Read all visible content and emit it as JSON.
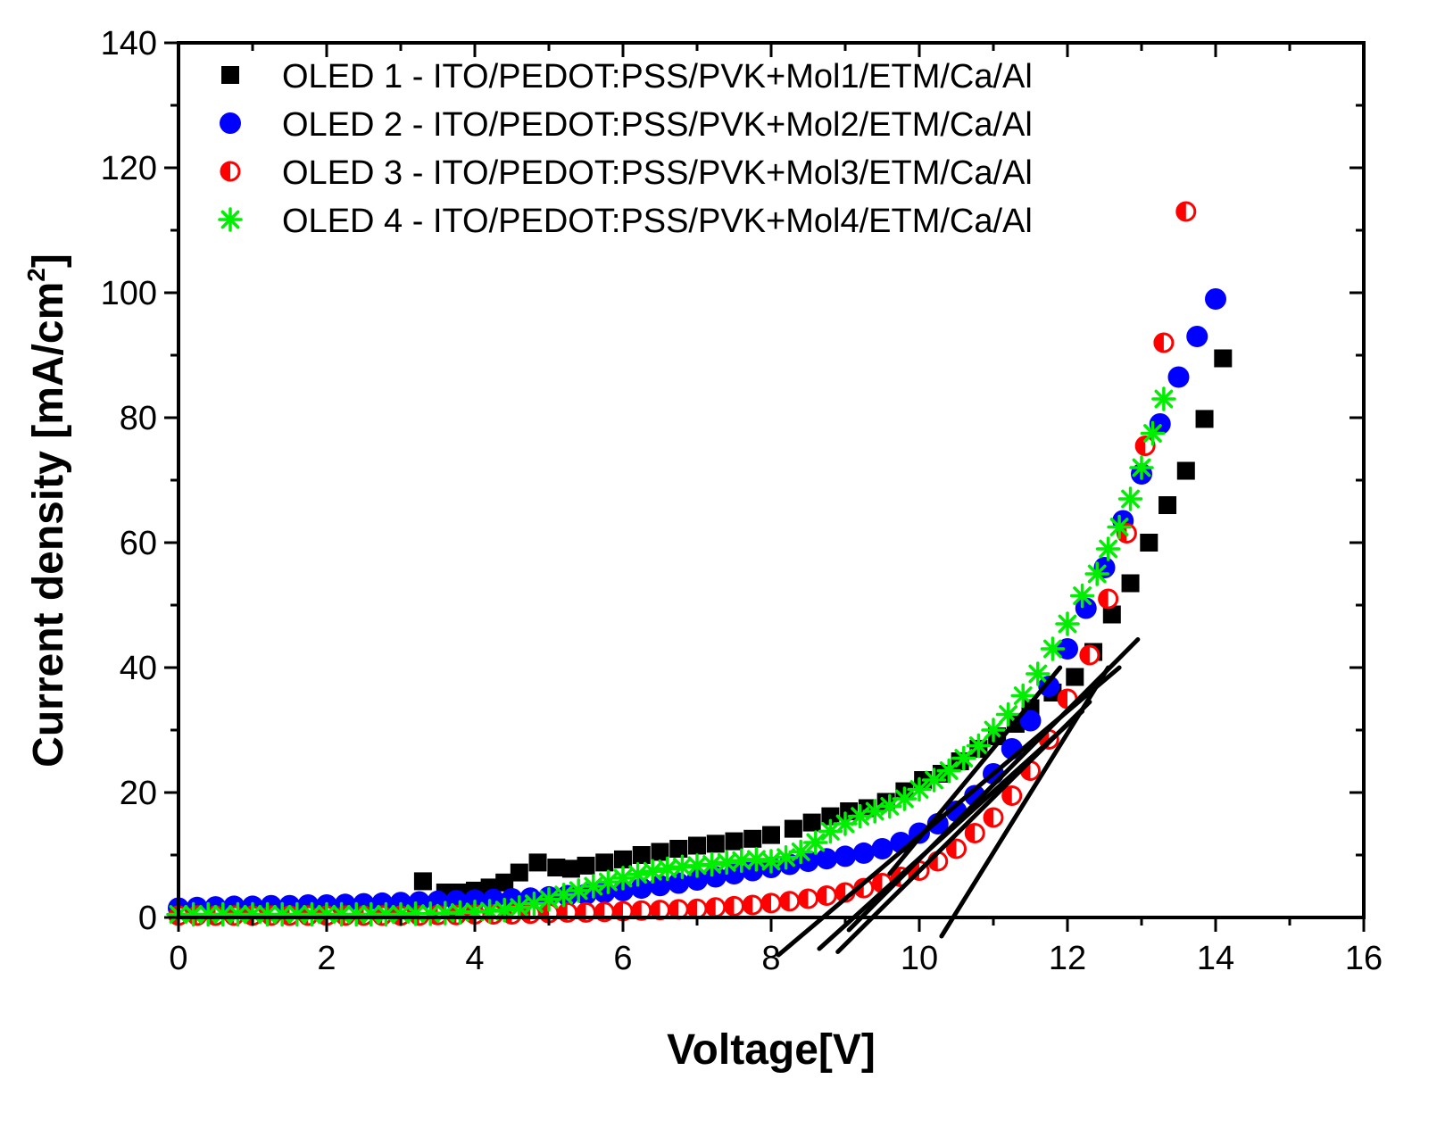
{
  "chart_data": {
    "type": "scatter",
    "title": "",
    "xlabel": "Voltage[V]",
    "ylabel": "Current density [mA/cm",
    "ylabel_superscript": "2",
    "ylabel_suffix": "]",
    "xlim": [
      0,
      16
    ],
    "ylim": [
      0,
      140
    ],
    "x_ticks": [
      0,
      2,
      4,
      6,
      8,
      10,
      12,
      14,
      16
    ],
    "y_ticks": [
      0,
      20,
      40,
      60,
      80,
      100,
      120,
      140
    ],
    "grid": false,
    "legend_position": "top-left",
    "series": [
      {
        "name": "OLED 1 - ITO/PEDOT:PSS/PVK+Mol1/ETM/Ca/Al",
        "marker": "square",
        "color": "#000000",
        "points": [
          [
            3.3,
            5.8
          ],
          [
            3.6,
            4.0
          ],
          [
            3.8,
            4.0
          ],
          [
            4.0,
            4.3
          ],
          [
            4.2,
            4.8
          ],
          [
            4.4,
            5.6
          ],
          [
            4.6,
            7.2
          ],
          [
            4.85,
            8.8
          ],
          [
            5.1,
            8.0
          ],
          [
            5.3,
            7.8
          ],
          [
            5.5,
            8.3
          ],
          [
            5.75,
            8.8
          ],
          [
            6.0,
            9.3
          ],
          [
            6.25,
            10.0
          ],
          [
            6.5,
            10.5
          ],
          [
            6.75,
            11.0
          ],
          [
            7.0,
            11.5
          ],
          [
            7.25,
            11.8
          ],
          [
            7.5,
            12.2
          ],
          [
            7.75,
            12.6
          ],
          [
            8.0,
            13.2
          ],
          [
            8.3,
            14.2
          ],
          [
            8.55,
            15.2
          ],
          [
            8.8,
            16.2
          ],
          [
            9.05,
            17.0
          ],
          [
            9.3,
            17.5
          ],
          [
            9.55,
            18.5
          ],
          [
            9.8,
            20.2
          ],
          [
            10.05,
            22.0
          ],
          [
            10.3,
            23.0
          ],
          [
            10.55,
            25.0
          ],
          [
            10.8,
            27.0
          ],
          [
            11.05,
            29.0
          ],
          [
            11.3,
            31.0
          ],
          [
            11.5,
            33.5
          ],
          [
            11.8,
            36.0
          ],
          [
            12.1,
            38.5
          ],
          [
            12.35,
            42.5
          ],
          [
            12.6,
            48.5
          ],
          [
            12.85,
            53.5
          ],
          [
            13.1,
            60.0
          ],
          [
            13.35,
            66.0
          ],
          [
            13.6,
            71.5
          ],
          [
            13.85,
            79.8
          ],
          [
            14.1,
            89.5
          ]
        ]
      },
      {
        "name": "OLED 2 - ITO/PEDOT:PSS/PVK+Mol2/ETM/Ca/Al",
        "marker": "circle",
        "color": "#0000ff",
        "points": [
          [
            0.0,
            1.5
          ],
          [
            0.25,
            1.6
          ],
          [
            0.5,
            1.7
          ],
          [
            0.75,
            1.8
          ],
          [
            1.0,
            1.8
          ],
          [
            1.25,
            1.9
          ],
          [
            1.5,
            1.9
          ],
          [
            1.75,
            2.0
          ],
          [
            2.0,
            2.0
          ],
          [
            2.25,
            2.1
          ],
          [
            2.5,
            2.2
          ],
          [
            2.75,
            2.3
          ],
          [
            3.0,
            2.4
          ],
          [
            3.25,
            2.5
          ],
          [
            3.5,
            2.6
          ],
          [
            3.75,
            2.7
          ],
          [
            4.0,
            2.8
          ],
          [
            4.25,
            2.9
          ],
          [
            4.5,
            3.0
          ],
          [
            4.75,
            3.1
          ],
          [
            5.0,
            3.3
          ],
          [
            5.25,
            3.5
          ],
          [
            5.5,
            3.7
          ],
          [
            5.75,
            4.0
          ],
          [
            6.0,
            4.3
          ],
          [
            6.25,
            4.7
          ],
          [
            6.5,
            5.1
          ],
          [
            6.75,
            5.5
          ],
          [
            7.0,
            6.0
          ],
          [
            7.25,
            6.5
          ],
          [
            7.5,
            7.0
          ],
          [
            7.75,
            7.5
          ],
          [
            8.0,
            8.0
          ],
          [
            8.25,
            8.5
          ],
          [
            8.5,
            9.0
          ],
          [
            8.75,
            9.4
          ],
          [
            9.0,
            9.8
          ],
          [
            9.25,
            10.3
          ],
          [
            9.5,
            11.0
          ],
          [
            9.75,
            12.0
          ],
          [
            10.0,
            13.5
          ],
          [
            10.25,
            15.0
          ],
          [
            10.5,
            17.0
          ],
          [
            10.75,
            19.5
          ],
          [
            11.0,
            23.0
          ],
          [
            11.25,
            27.0
          ],
          [
            11.5,
            31.5
          ],
          [
            11.75,
            37.0
          ],
          [
            12.0,
            43.0
          ],
          [
            12.25,
            49.5
          ],
          [
            12.5,
            56.0
          ],
          [
            12.75,
            63.5
          ],
          [
            13.0,
            71.0
          ],
          [
            13.25,
            79.0
          ],
          [
            13.5,
            86.5
          ],
          [
            13.75,
            93.0
          ],
          [
            14.0,
            99.0
          ]
        ]
      },
      {
        "name": "OLED 3 - ITO/PEDOT:PSS/PVK+Mol3/ETM/Ca/Al",
        "marker": "half-circle",
        "color": "#ff0000",
        "points": [
          [
            0.0,
            0.3
          ],
          [
            0.25,
            0.3
          ],
          [
            0.5,
            0.3
          ],
          [
            0.75,
            0.3
          ],
          [
            1.0,
            0.3
          ],
          [
            1.25,
            0.3
          ],
          [
            1.5,
            0.3
          ],
          [
            1.75,
            0.3
          ],
          [
            2.0,
            0.3
          ],
          [
            2.25,
            0.3
          ],
          [
            2.5,
            0.3
          ],
          [
            2.75,
            0.3
          ],
          [
            3.0,
            0.3
          ],
          [
            3.25,
            0.3
          ],
          [
            3.5,
            0.4
          ],
          [
            3.75,
            0.4
          ],
          [
            4.0,
            0.5
          ],
          [
            4.25,
            0.5
          ],
          [
            4.5,
            0.5
          ],
          [
            4.75,
            0.6
          ],
          [
            5.0,
            0.7
          ],
          [
            5.25,
            0.8
          ],
          [
            5.5,
            0.8
          ],
          [
            5.75,
            0.9
          ],
          [
            6.0,
            1.0
          ],
          [
            6.25,
            1.1
          ],
          [
            6.5,
            1.2
          ],
          [
            6.75,
            1.3
          ],
          [
            7.0,
            1.4
          ],
          [
            7.25,
            1.6
          ],
          [
            7.5,
            1.8
          ],
          [
            7.75,
            2.0
          ],
          [
            8.0,
            2.3
          ],
          [
            8.25,
            2.6
          ],
          [
            8.5,
            3.0
          ],
          [
            8.75,
            3.5
          ],
          [
            9.0,
            4.0
          ],
          [
            9.25,
            4.7
          ],
          [
            9.5,
            5.5
          ],
          [
            9.75,
            6.5
          ],
          [
            10.0,
            7.5
          ],
          [
            10.25,
            9.0
          ],
          [
            10.5,
            11.0
          ],
          [
            10.75,
            13.5
          ],
          [
            11.0,
            16.0
          ],
          [
            11.25,
            19.5
          ],
          [
            11.5,
            23.5
          ],
          [
            11.75,
            28.5
          ],
          [
            12.0,
            35.0
          ],
          [
            12.3,
            42.0
          ],
          [
            12.55,
            51.0
          ],
          [
            12.8,
            61.5
          ],
          [
            13.05,
            75.5
          ],
          [
            13.3,
            92.0
          ],
          [
            13.6,
            113.0
          ]
        ]
      },
      {
        "name": "OLED 4 - ITO/PEDOT:PSS/PVK+Mol4/ETM/Ca/Al",
        "marker": "asterisk",
        "color": "#00ee00",
        "points": [
          [
            0.0,
            0.5
          ],
          [
            0.2,
            0.5
          ],
          [
            0.4,
            0.5
          ],
          [
            0.6,
            0.5
          ],
          [
            0.8,
            0.5
          ],
          [
            1.0,
            0.5
          ],
          [
            1.2,
            0.5
          ],
          [
            1.4,
            0.5
          ],
          [
            1.6,
            0.5
          ],
          [
            1.8,
            0.5
          ],
          [
            2.0,
            0.5
          ],
          [
            2.2,
            0.5
          ],
          [
            2.4,
            0.5
          ],
          [
            2.6,
            0.5
          ],
          [
            2.8,
            0.5
          ],
          [
            3.0,
            0.5
          ],
          [
            3.2,
            0.6
          ],
          [
            3.4,
            0.6
          ],
          [
            3.6,
            0.7
          ],
          [
            3.8,
            0.8
          ],
          [
            4.0,
            0.9
          ],
          [
            4.2,
            1.0
          ],
          [
            4.4,
            1.2
          ],
          [
            4.6,
            1.6
          ],
          [
            4.8,
            2.2
          ],
          [
            5.0,
            2.9
          ],
          [
            5.2,
            3.6
          ],
          [
            5.4,
            4.3
          ],
          [
            5.6,
            5.0
          ],
          [
            5.8,
            5.7
          ],
          [
            6.0,
            6.3
          ],
          [
            6.2,
            6.9
          ],
          [
            6.4,
            7.4
          ],
          [
            6.6,
            7.8
          ],
          [
            6.8,
            8.1
          ],
          [
            7.0,
            8.3
          ],
          [
            7.2,
            8.5
          ],
          [
            7.4,
            8.8
          ],
          [
            7.6,
            9.1
          ],
          [
            7.8,
            9.3
          ],
          [
            8.0,
            9.0
          ],
          [
            8.2,
            9.6
          ],
          [
            8.4,
            10.5
          ],
          [
            8.6,
            12.0
          ],
          [
            8.8,
            13.8
          ],
          [
            9.0,
            15.0
          ],
          [
            9.2,
            16.2
          ],
          [
            9.4,
            17.0
          ],
          [
            9.6,
            17.8
          ],
          [
            9.8,
            19.0
          ],
          [
            10.0,
            20.5
          ],
          [
            10.2,
            22.0
          ],
          [
            10.4,
            23.5
          ],
          [
            10.6,
            25.5
          ],
          [
            10.8,
            27.5
          ],
          [
            11.0,
            30.0
          ],
          [
            11.2,
            32.5
          ],
          [
            11.4,
            35.5
          ],
          [
            11.6,
            39.0
          ],
          [
            11.8,
            43.0
          ],
          [
            12.0,
            47.0
          ],
          [
            12.2,
            51.5
          ],
          [
            12.4,
            55.0
          ],
          [
            12.55,
            59.0
          ],
          [
            12.7,
            62.5
          ],
          [
            12.85,
            67.0
          ],
          [
            13.0,
            72.0
          ],
          [
            13.15,
            77.5
          ],
          [
            13.3,
            83.0
          ]
        ]
      }
    ],
    "fit_lines": [
      [
        [
          8.1,
          -6.0
        ],
        [
          12.7,
          40.0
        ]
      ],
      [
        [
          8.65,
          -5.0
        ],
        [
          12.2,
          33.0
        ]
      ],
      [
        [
          8.9,
          -5.5
        ],
        [
          12.3,
          34.5
        ]
      ],
      [
        [
          9.05,
          -2.0
        ],
        [
          12.95,
          44.5
        ]
      ],
      [
        [
          9.6,
          7.0
        ],
        [
          11.9,
          40.0
        ]
      ],
      [
        [
          10.3,
          -3.0
        ],
        [
          12.55,
          40.0
        ]
      ]
    ]
  }
}
